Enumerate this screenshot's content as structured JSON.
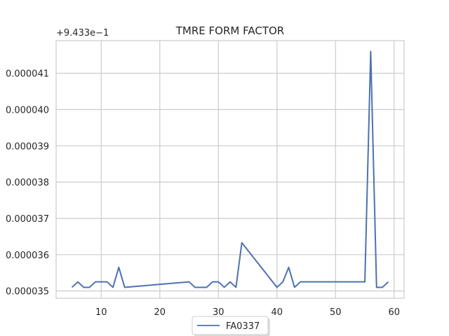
{
  "chart_data": {
    "type": "line",
    "title": "TMRE FORM FACTOR",
    "offset_label": "+9.433e−1",
    "xlabel": "",
    "ylabel": "",
    "xlim": [
      2.3,
      61.7
    ],
    "ylim": [
      3.48e-05,
      4.19e-05
    ],
    "x_ticks": [
      10,
      20,
      30,
      40,
      50,
      60
    ],
    "y_ticks": [
      3.5e-05,
      3.6e-05,
      3.7e-05,
      3.8e-05,
      3.9e-05,
      4e-05,
      4.1e-05
    ],
    "y_tick_labels": [
      "0.000035",
      "0.000036",
      "0.000037",
      "0.000038",
      "0.000039",
      "0.000040",
      "0.000041"
    ],
    "grid": true,
    "legend_position": "bottom-center",
    "series": [
      {
        "name": "FA0337",
        "color": "#4c72b0",
        "x": [
          5,
          6,
          7,
          8,
          9,
          10,
          11,
          12,
          13,
          14,
          25,
          26,
          27,
          28,
          29,
          30,
          31,
          32,
          33,
          34,
          40,
          41,
          42,
          43,
          44,
          55,
          56,
          57,
          58,
          59
        ],
        "y": [
          3.51e-05,
          3.525e-05,
          3.51e-05,
          3.51e-05,
          3.525e-05,
          3.525e-05,
          3.525e-05,
          3.51e-05,
          3.565e-05,
          3.51e-05,
          3.525e-05,
          3.51e-05,
          3.51e-05,
          3.51e-05,
          3.525e-05,
          3.525e-05,
          3.51e-05,
          3.525e-05,
          3.51e-05,
          3.633e-05,
          3.51e-05,
          3.525e-05,
          3.565e-05,
          3.51e-05,
          3.525e-05,
          3.525e-05,
          4.16e-05,
          3.51e-05,
          3.51e-05,
          3.525e-05
        ]
      }
    ]
  }
}
